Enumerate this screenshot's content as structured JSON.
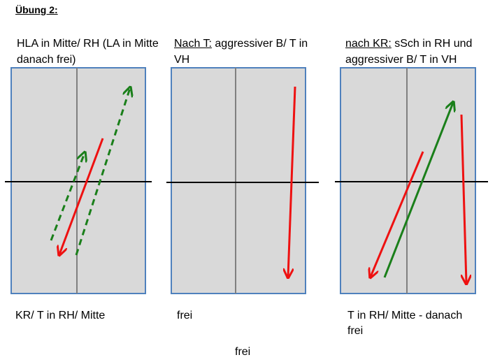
{
  "title": "Übung 2:",
  "panels": [
    {
      "caption_underlined": "",
      "caption_rest": "HLA in Mitte/ RH (LA in Mitte danach frei)",
      "footer": "KR/ T in RH/ Mitte"
    },
    {
      "caption_underlined": "Nach T:",
      "caption_rest": " aggressiver B/ T in VH",
      "footer": "frei"
    },
    {
      "caption_underlined": "nach KR:",
      "caption_rest": " sSch in RH und aggressiver B/ T in VH",
      "footer": "T in RH/ Mitte - danach frei"
    }
  ],
  "bottom_label": "frei",
  "colors": {
    "field_fill": "#d9d9d9",
    "field_border": "#4f81bd",
    "center_line": "#808080",
    "red_arrow": "#ee1111",
    "green_arrow": "#1a7f1a"
  }
}
